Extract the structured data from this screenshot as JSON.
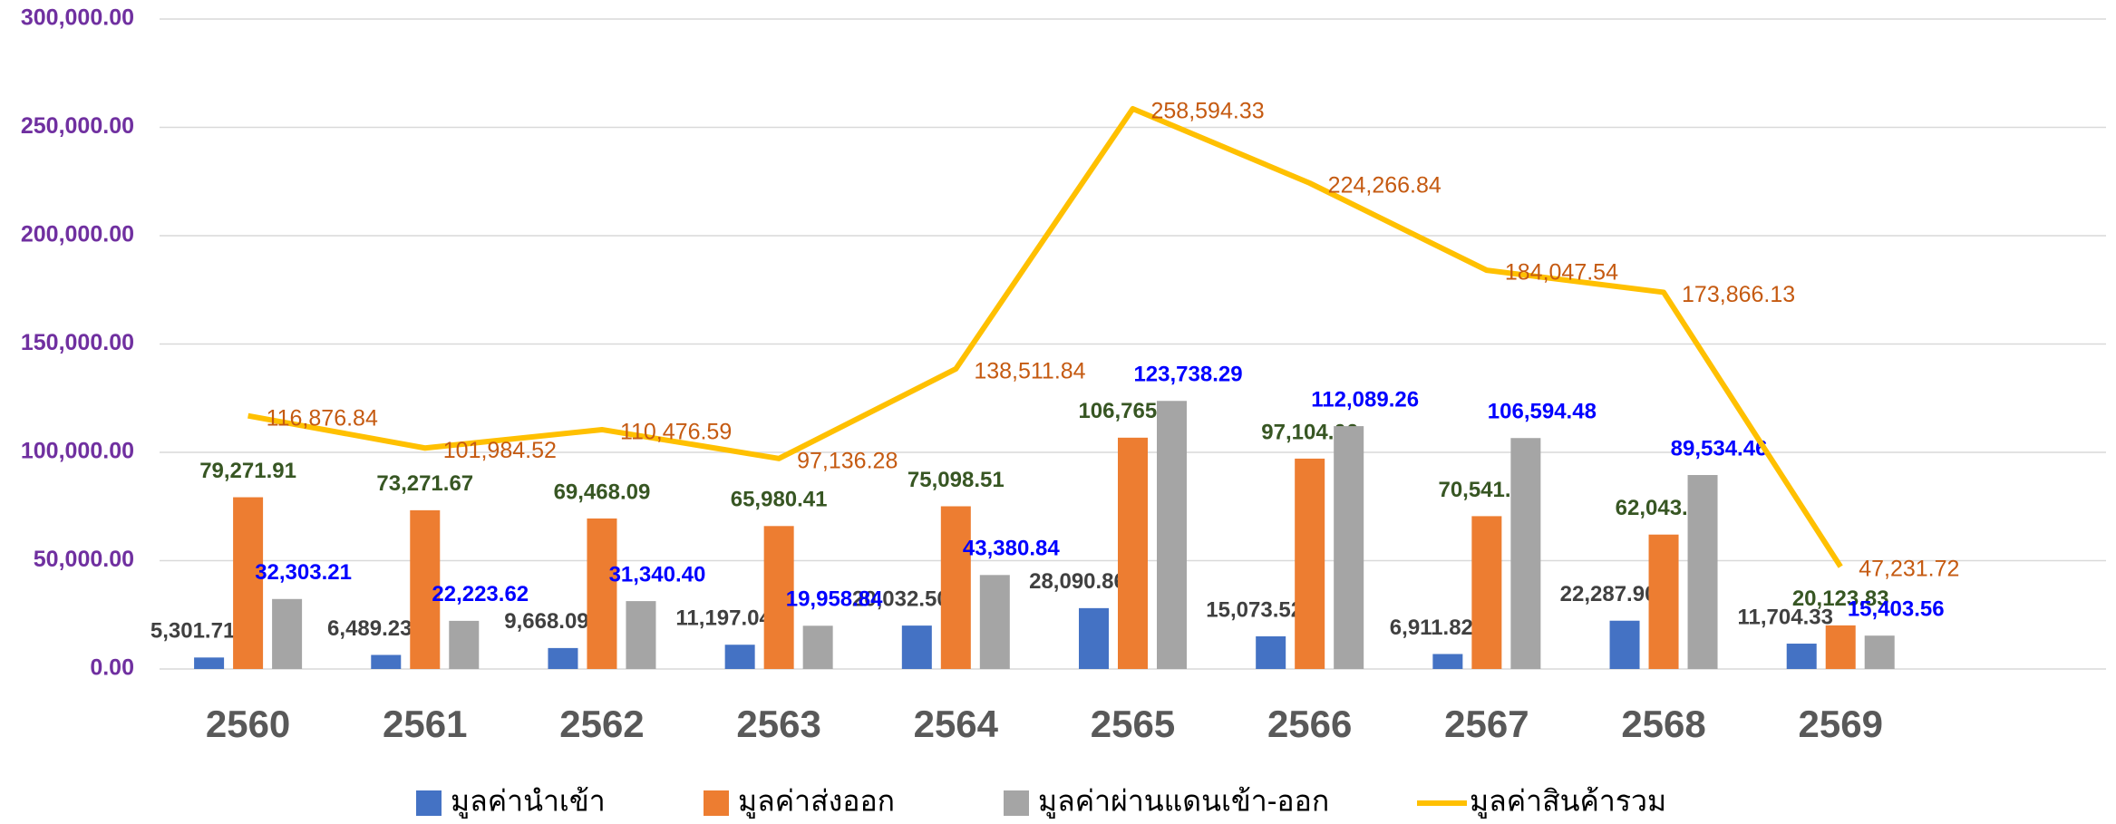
{
  "chart_data": {
    "type": "bar",
    "categories": [
      "2560",
      "2561",
      "2562",
      "2563",
      "2564",
      "2565",
      "2566",
      "2567",
      "2568",
      "2569"
    ],
    "series": [
      {
        "name": "มูลค่านำเข้า",
        "color": "#4472c4",
        "label_color": "#404040",
        "values": [
          5301.71,
          6489.23,
          9668.09,
          11197.04,
          20032.5,
          28090.86,
          15073.52,
          6911.82,
          22287.9,
          11704.33
        ],
        "value_labels": [
          "5,301.71",
          "6,489.23",
          "9,668.09",
          "11,197.04",
          "20,032.50",
          "28,090.86",
          "15,073.52",
          "6,911.82",
          "22,287.90",
          "11,704.33"
        ]
      },
      {
        "name": "มูลค่าส่งออก",
        "color": "#ed7d31",
        "label_color": "#375623",
        "values": [
          79271.91,
          73271.67,
          69468.09,
          65980.41,
          75098.51,
          106765.18,
          97104.06,
          70541.24,
          62043.77,
          20123.83
        ],
        "value_labels": [
          "79,271.91",
          "73,271.67",
          "69,468.09",
          "65,980.41",
          "75,098.51",
          "106,765.18",
          "97,104.06",
          "70,541.24",
          "62,043.77",
          "20,123.83"
        ]
      },
      {
        "name": "มูลค่าผ่านแดนเข้า-ออก",
        "color": "#a5a5a5",
        "label_color": "#0000ff",
        "values": [
          32303.21,
          22223.62,
          31340.4,
          19958.84,
          43380.84,
          123738.29,
          112089.26,
          106594.48,
          89534.46,
          15403.56
        ],
        "value_labels": [
          "32,303.21",
          "22,223.62",
          "31,340.40",
          "19,958.84",
          "43,380.84",
          "123,738.29",
          "112,089.26",
          "106,594.48",
          "89,534.46",
          "15,403.56"
        ]
      },
      {
        "name": "มูลค่าสินค้ารวม",
        "type": "line",
        "color": "#ffc000",
        "label_color": "#c55a11",
        "values": [
          116876.84,
          101984.52,
          110476.59,
          97136.28,
          138511.84,
          258594.33,
          224266.84,
          184047.54,
          173866.13,
          47231.72
        ],
        "value_labels": [
          "116,876.84",
          "101,984.52",
          "110,476.59",
          "97,136.28",
          "138,511.84",
          "258,594.33",
          "224,266.84",
          "184,047.54",
          "173,866.13",
          "47,231.72"
        ]
      }
    ],
    "ylim": [
      0,
      300000
    ],
    "yticks": [
      {
        "value": 0,
        "label": "0.00"
      },
      {
        "value": 50000,
        "label": "50,000.00"
      },
      {
        "value": 100000,
        "label": "100,000.00"
      },
      {
        "value": 150000,
        "label": "150,000.00"
      },
      {
        "value": 200000,
        "label": "200,000.00"
      },
      {
        "value": 250000,
        "label": "250,000.00"
      },
      {
        "value": 300000,
        "label": "300,000.00"
      }
    ],
    "grid": true,
    "legend": "bottom"
  }
}
